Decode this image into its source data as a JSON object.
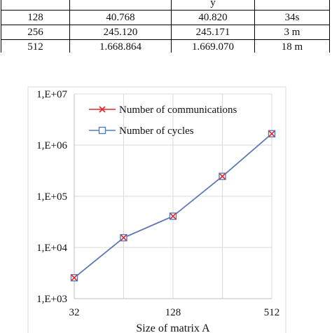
{
  "table": {
    "header_partial": [
      "",
      "",
      "y",
      ""
    ],
    "rows": [
      [
        "128",
        "40.768",
        "40.820",
        "34s"
      ],
      [
        "256",
        "245.120",
        "245.171",
        "3 m"
      ],
      [
        "512",
        "1.668.864",
        "1.669.070",
        "18 m"
      ]
    ]
  },
  "chart_data": {
    "type": "line",
    "title": "",
    "xlabel": "Size of matrix A",
    "ylabel": "",
    "x_scale": "log2",
    "y_scale": "log10",
    "x": [
      32,
      64,
      128,
      256,
      512
    ],
    "x_tick_labels": [
      "32",
      "128",
      "512"
    ],
    "x_tick_values": [
      32,
      128,
      512
    ],
    "y_tick_labels": [
      "1,E+03",
      "1,E+04",
      "1,E+05",
      "1,E+06",
      "1,E+07"
    ],
    "y_tick_values": [
      1000,
      10000,
      100000,
      1000000,
      10000000
    ],
    "ylim": [
      1000,
      10000000
    ],
    "xlim": [
      32,
      512
    ],
    "grid": true,
    "legend_position": "top-left",
    "series": [
      {
        "name": "Number of communications",
        "marker": "x",
        "color": "#e3262a",
        "values": [
          2560,
          15500,
          40768,
          245120,
          1668864
        ]
      },
      {
        "name": "Number of cycles",
        "marker": "square",
        "color": "#4f7fc0",
        "values": [
          2560,
          15500,
          40820,
          245171,
          1669070
        ]
      }
    ]
  }
}
